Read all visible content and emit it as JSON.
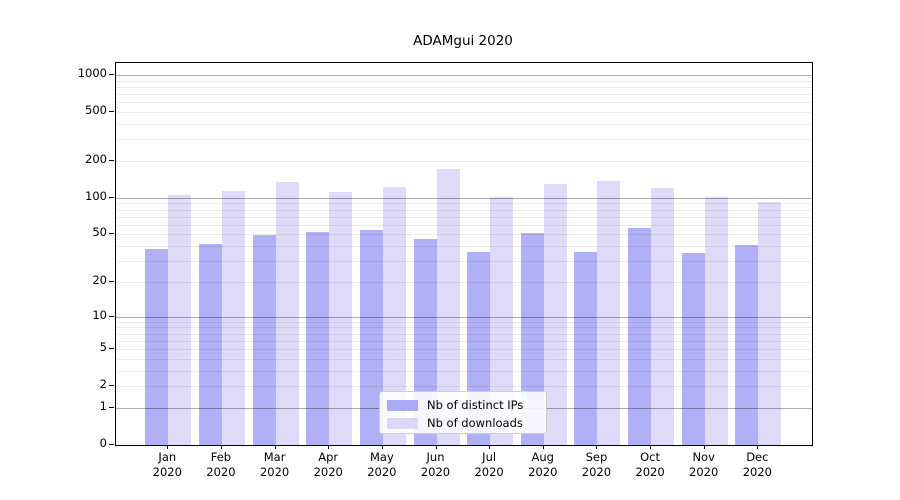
{
  "figure": {
    "title": "ADAMgui 2020"
  },
  "chart_data": {
    "type": "bar",
    "title": "ADAMgui 2020",
    "categories": [
      "Jan",
      "Feb",
      "Mar",
      "Apr",
      "May",
      "Jun",
      "Jul",
      "Aug",
      "Sep",
      "Oct",
      "Nov",
      "Dec"
    ],
    "category_year": "2020",
    "series": [
      {
        "name": "Nb of distinct IPs",
        "color": "#a9a9f5",
        "values": [
          38,
          42,
          50,
          52,
          54,
          46,
          36,
          51,
          36,
          57,
          35,
          41
        ]
      },
      {
        "name": "Nb of downloads",
        "color": "#d9d9f8",
        "values": [
          105,
          113,
          136,
          112,
          122,
          171,
          102,
          131,
          138,
          121,
          101,
          92
        ]
      }
    ],
    "yscale": "log1p",
    "yticks": [
      0,
      1,
      2,
      5,
      10,
      20,
      50,
      100,
      200,
      500,
      1000
    ],
    "ylim": [
      0,
      1250
    ],
    "grid": {
      "major_lines": [
        1,
        10,
        100,
        1000
      ],
      "minor_lines": [
        2,
        3,
        4,
        5,
        6,
        7,
        8,
        9,
        20,
        30,
        40,
        50,
        60,
        70,
        80,
        90,
        200,
        300,
        400,
        500,
        600,
        700,
        800,
        900
      ]
    },
    "legend": {
      "position": "lower-center",
      "entries": [
        "Nb of distinct IPs",
        "Nb of downloads"
      ]
    }
  }
}
